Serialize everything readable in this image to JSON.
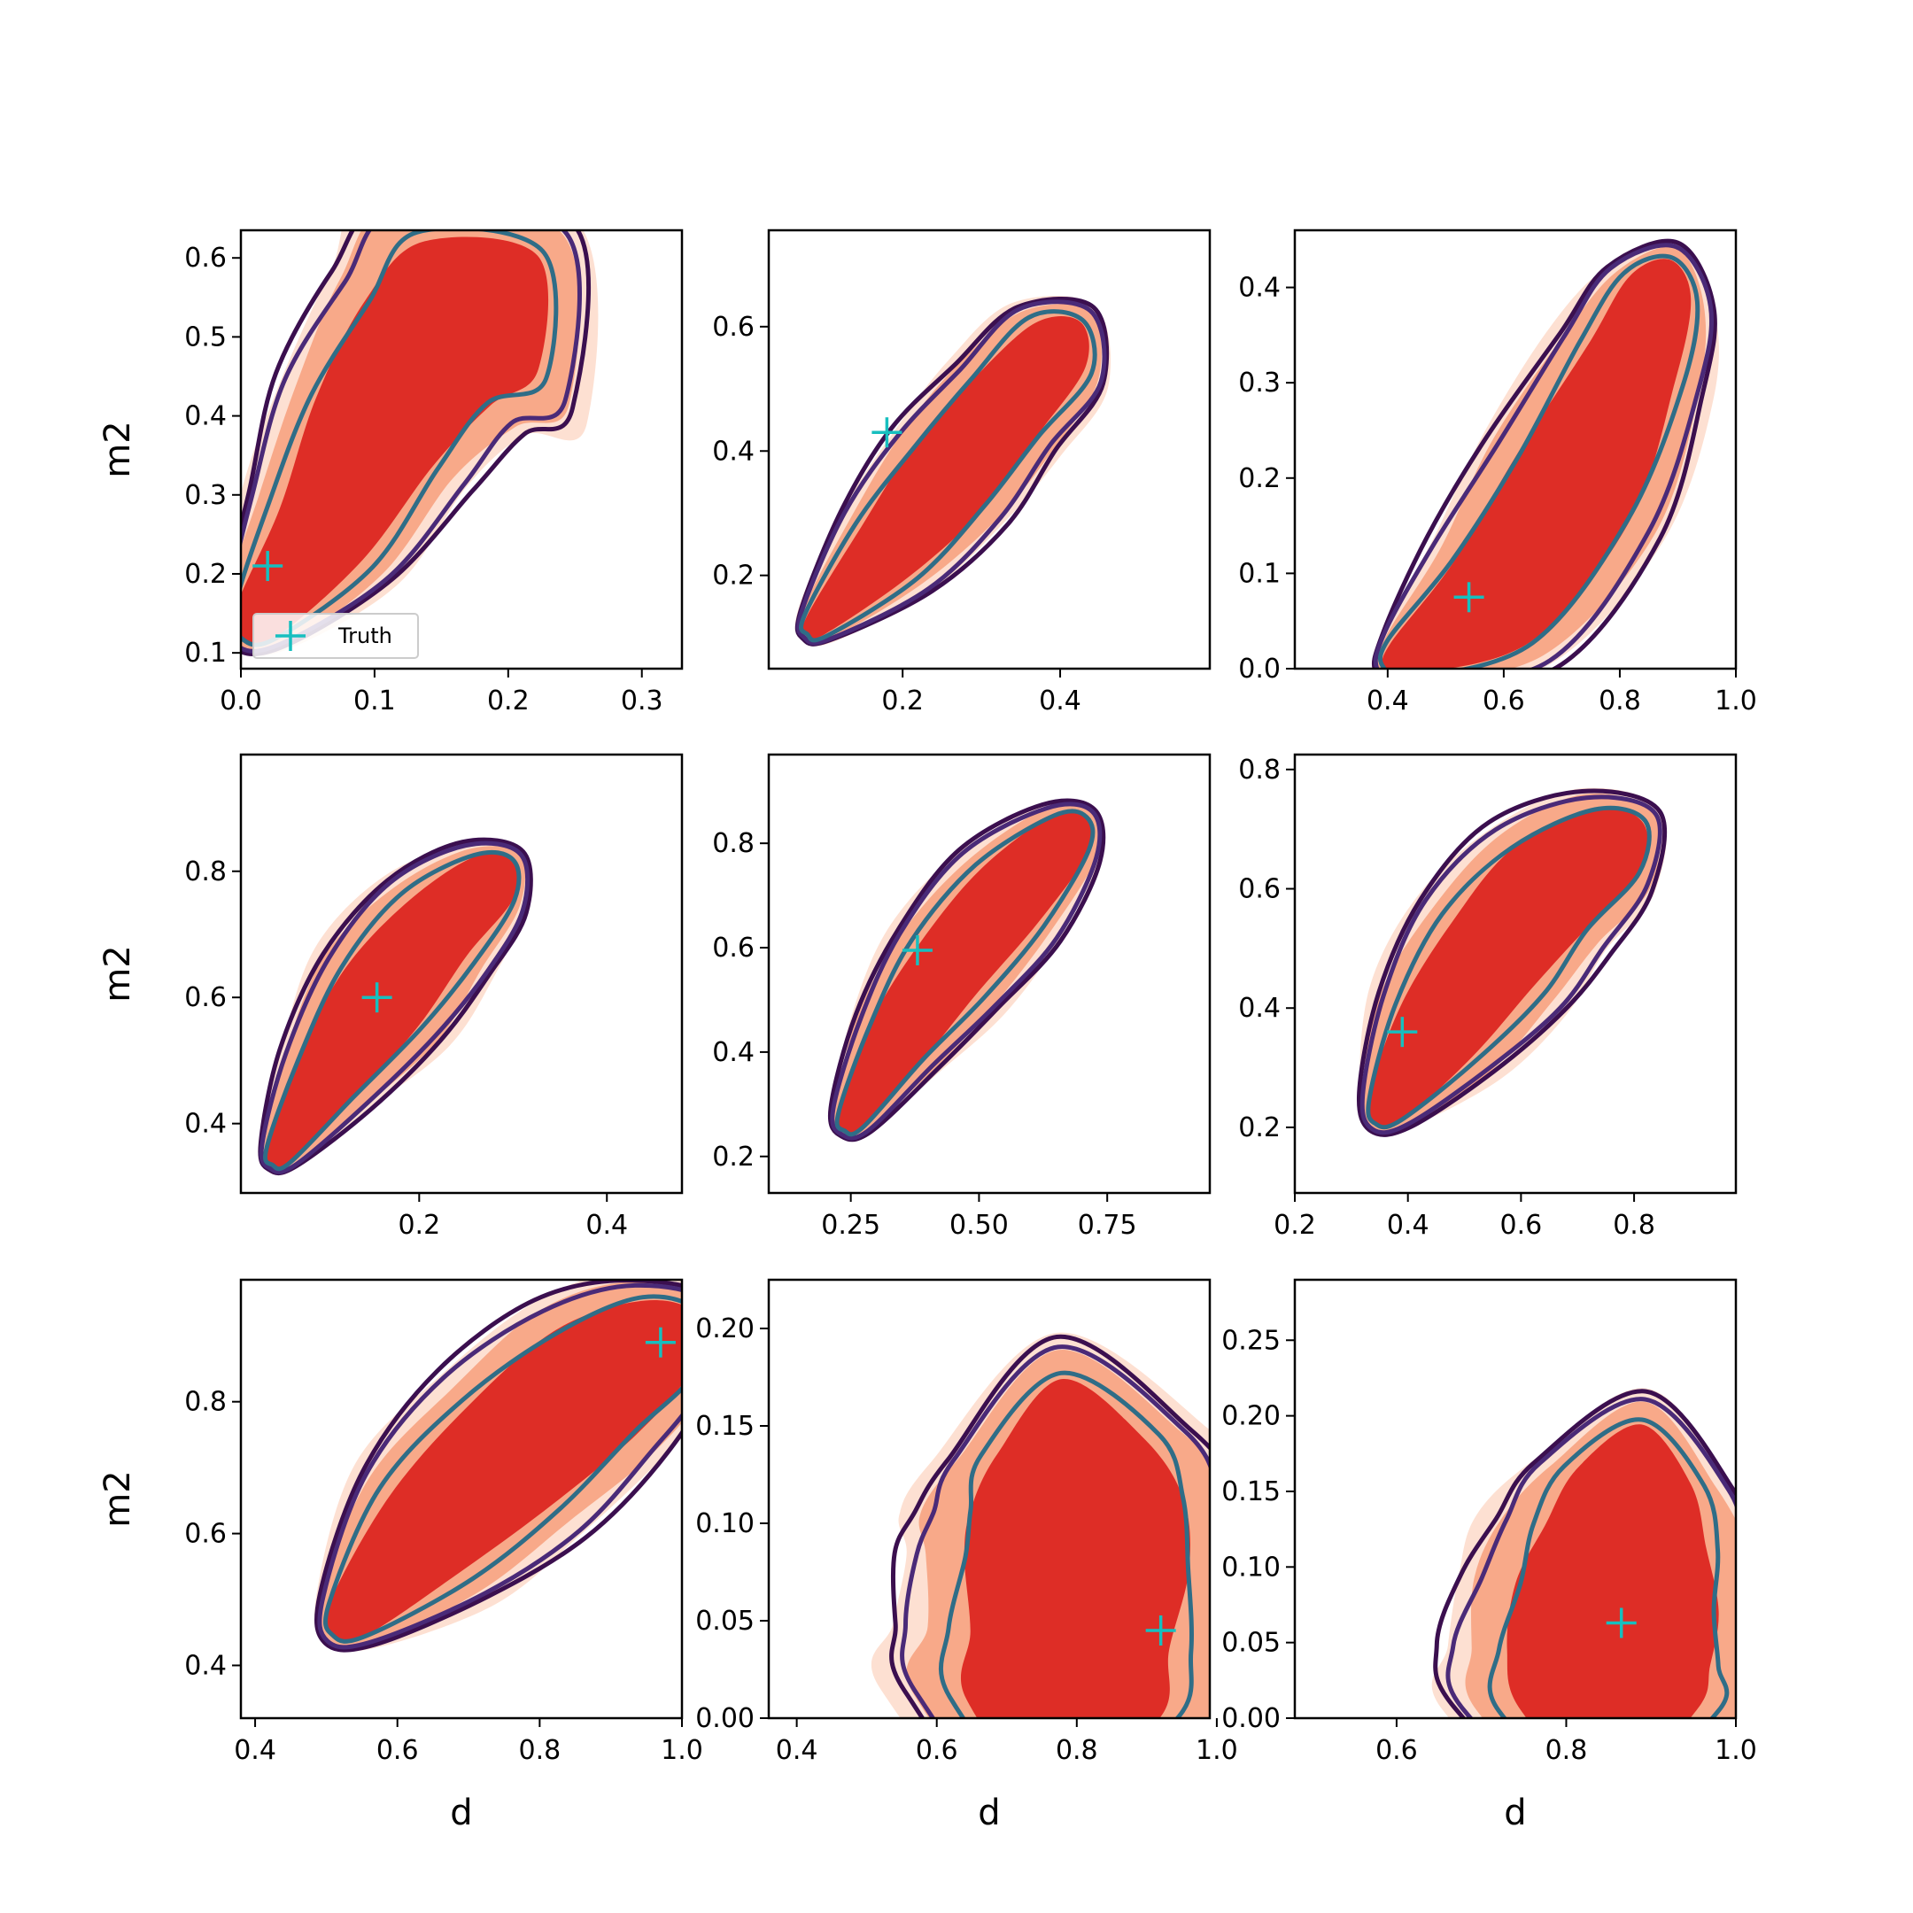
{
  "figure": {
    "legend_label": "Truth",
    "legend_panel": 0,
    "legend_location": "lower left",
    "colors": {
      "fill_outer": "#fde0d2",
      "fill_middle": "#f8a989",
      "fill_inner": "#de2d26",
      "contour_outer": "#3b0f4f",
      "contour_middle": "#4a2a78",
      "contour_inner": "#2f6d87",
      "truth_marker": "#17bfbf"
    }
  },
  "chart_data": [
    {
      "type": "contour",
      "row": 0,
      "col": 0,
      "xlabel": "",
      "ylabel": "m2",
      "xlim": [
        0.0,
        0.33
      ],
      "ylim": [
        0.08,
        0.635
      ],
      "xticks": [
        "0.0",
        "0.1",
        "0.2",
        "0.3"
      ],
      "xtick_values": [
        0.0,
        0.1,
        0.2,
        0.3
      ],
      "yticks": [
        "0.1",
        "0.2",
        "0.3",
        "0.4",
        "0.5",
        "0.6"
      ],
      "ytick_values": [
        0.1,
        0.2,
        0.3,
        0.4,
        0.5,
        0.6
      ],
      "truth": [
        0.02,
        0.21
      ],
      "ridge": [
        [
          0.012,
          0.14
        ],
        [
          0.06,
          0.25
        ],
        [
          0.1,
          0.38
        ],
        [
          0.14,
          0.48
        ],
        [
          0.18,
          0.54
        ]
      ],
      "widths": [
        0.028,
        0.06,
        0.076,
        0.086,
        0.1
      ]
    },
    {
      "type": "contour",
      "row": 0,
      "col": 1,
      "xlabel": "",
      "ylabel": "",
      "xlim": [
        0.03,
        0.59
      ],
      "ylim": [
        0.05,
        0.755
      ],
      "xticks": [
        "0.2",
        "0.4"
      ],
      "xtick_values": [
        0.2,
        0.4
      ],
      "yticks": [
        "0.2",
        "0.4",
        "0.6"
      ],
      "ytick_values": [
        0.2,
        0.4,
        0.6
      ],
      "truth": [
        0.18,
        0.43
      ],
      "ridge": [
        [
          0.09,
          0.12
        ],
        [
          0.18,
          0.24
        ],
        [
          0.26,
          0.36
        ],
        [
          0.33,
          0.47
        ],
        [
          0.4,
          0.57
        ]
      ],
      "widths": [
        0.026,
        0.07,
        0.085,
        0.08,
        0.07
      ]
    },
    {
      "type": "contour",
      "row": 0,
      "col": 2,
      "xlabel": "",
      "ylabel": "",
      "xlim": [
        0.24,
        1.0
      ],
      "ylim": [
        0.0,
        0.46
      ],
      "xticks": [
        "0.4",
        "0.6",
        "0.8",
        "1.0"
      ],
      "xtick_values": [
        0.4,
        0.6,
        0.8,
        1.0
      ],
      "yticks": [
        "0.0",
        "0.1",
        "0.2",
        "0.3",
        "0.4"
      ],
      "ytick_values": [
        0.0,
        0.1,
        0.2,
        0.3,
        0.4
      ],
      "truth": [
        0.54,
        0.075
      ],
      "ridge": [
        [
          0.42,
          0.01
        ],
        [
          0.58,
          0.07
        ],
        [
          0.72,
          0.19
        ],
        [
          0.82,
          0.32
        ],
        [
          0.87,
          0.4
        ]
      ],
      "widths": [
        0.05,
        0.14,
        0.16,
        0.13,
        0.09
      ]
    },
    {
      "type": "contour",
      "row": 1,
      "col": 0,
      "xlabel": "",
      "ylabel": "m2",
      "xlim": [
        0.01,
        0.48
      ],
      "ylim": [
        0.29,
        0.985
      ],
      "xticks": [
        "0.2",
        "0.4"
      ],
      "xtick_values": [
        0.2,
        0.4
      ],
      "yticks": [
        "0.4",
        "0.6",
        "0.8"
      ],
      "ytick_values": [
        0.4,
        0.6,
        0.8
      ],
      "truth": [
        0.155,
        0.6
      ],
      "ridge": [
        [
          0.05,
          0.35
        ],
        [
          0.1,
          0.47
        ],
        [
          0.16,
          0.6
        ],
        [
          0.22,
          0.71
        ],
        [
          0.28,
          0.79
        ]
      ],
      "widths": [
        0.02,
        0.052,
        0.075,
        0.07,
        0.045
      ]
    },
    {
      "type": "contour",
      "row": 1,
      "col": 1,
      "xlabel": "",
      "ylabel": "",
      "xlim": [
        0.09,
        0.95
      ],
      "ylim": [
        0.13,
        0.97
      ],
      "xticks": [
        "0.25",
        "0.50",
        "0.75"
      ],
      "xtick_values": [
        0.25,
        0.5,
        0.75
      ],
      "yticks": [
        "0.2",
        "0.4",
        "0.6",
        "0.8"
      ],
      "ytick_values": [
        0.2,
        0.4,
        0.6,
        0.8
      ],
      "truth": [
        0.38,
        0.595
      ],
      "ridge": [
        [
          0.25,
          0.27
        ],
        [
          0.34,
          0.42
        ],
        [
          0.44,
          0.56
        ],
        [
          0.56,
          0.7
        ],
        [
          0.68,
          0.82
        ]
      ],
      "widths": [
        0.04,
        0.09,
        0.12,
        0.12,
        0.07
      ]
    },
    {
      "type": "contour",
      "row": 1,
      "col": 2,
      "xlabel": "",
      "ylabel": "",
      "xlim": [
        0.2,
        0.98
      ],
      "ylim": [
        0.09,
        0.825
      ],
      "xticks": [
        "0.2",
        "0.4",
        "0.6",
        "0.8"
      ],
      "xtick_values": [
        0.2,
        0.4,
        0.6,
        0.8
      ],
      "yticks": [
        "0.2",
        "0.4",
        "0.6",
        "0.8"
      ],
      "ytick_values": [
        0.2,
        0.4,
        0.6,
        0.8
      ],
      "truth": [
        0.39,
        0.36
      ],
      "ridge": [
        [
          0.36,
          0.23
        ],
        [
          0.45,
          0.36
        ],
        [
          0.55,
          0.49
        ],
        [
          0.65,
          0.6
        ],
        [
          0.77,
          0.68
        ]
      ],
      "widths": [
        0.05,
        0.12,
        0.15,
        0.14,
        0.1
      ]
    },
    {
      "type": "contour",
      "row": 2,
      "col": 0,
      "xlabel": "d",
      "ylabel": "m2",
      "xlim": [
        0.38,
        1.0
      ],
      "ylim": [
        0.32,
        0.985
      ],
      "xticks": [
        "0.4",
        "0.6",
        "0.8",
        "1.0"
      ],
      "xtick_values": [
        0.4,
        0.6,
        0.8,
        1.0
      ],
      "yticks": [
        "0.4",
        "0.6",
        "0.8"
      ],
      "ytick_values": [
        0.4,
        0.6,
        0.8
      ],
      "truth": [
        0.97,
        0.89
      ],
      "ridge": [
        [
          0.53,
          0.47
        ],
        [
          0.64,
          0.6
        ],
        [
          0.76,
          0.72
        ],
        [
          0.88,
          0.83
        ],
        [
          0.98,
          0.9
        ]
      ],
      "widths": [
        0.05,
        0.12,
        0.14,
        0.13,
        0.09
      ]
    },
    {
      "type": "contour",
      "row": 2,
      "col": 1,
      "xlabel": "d",
      "ylabel": "",
      "xlim": [
        0.36,
        0.99
      ],
      "ylim": [
        0.0,
        0.225
      ],
      "xticks": [
        "0.4",
        "0.6",
        "0.8",
        "1.0"
      ],
      "xtick_values": [
        0.4,
        0.6,
        0.8,
        1.0
      ],
      "yticks": [
        "0.00",
        "0.05",
        "0.10",
        "0.15",
        "0.20"
      ],
      "ytick_values": [
        0.0,
        0.05,
        0.1,
        0.15,
        0.2
      ],
      "truth": [
        0.92,
        0.045
      ],
      "ridge": [
        [
          0.78,
          0.005
        ],
        [
          0.79,
          0.04
        ],
        [
          0.8,
          0.08
        ],
        [
          0.8,
          0.11
        ],
        [
          0.79,
          0.14
        ]
      ],
      "widths": [
        0.22,
        0.23,
        0.23,
        0.22,
        0.17
      ]
    },
    {
      "type": "contour",
      "row": 2,
      "col": 2,
      "xlabel": "d",
      "ylabel": "",
      "xlim": [
        0.48,
        1.0
      ],
      "ylim": [
        0.0,
        0.29
      ],
      "xticks": [
        "0.6",
        "0.8",
        "1.0"
      ],
      "xtick_values": [
        0.6,
        0.8,
        1.0
      ],
      "yticks": [
        "0.00",
        "0.05",
        "0.10",
        "0.15",
        "0.20",
        "0.25"
      ],
      "ytick_values": [
        0.0,
        0.05,
        0.1,
        0.15,
        0.2,
        0.25
      ],
      "truth": [
        0.865,
        0.063
      ],
      "ridge": [
        [
          0.85,
          0.005
        ],
        [
          0.85,
          0.04
        ],
        [
          0.86,
          0.08
        ],
        [
          0.87,
          0.12
        ],
        [
          0.88,
          0.16
        ]
      ],
      "widths": [
        0.17,
        0.18,
        0.17,
        0.15,
        0.11
      ]
    }
  ]
}
